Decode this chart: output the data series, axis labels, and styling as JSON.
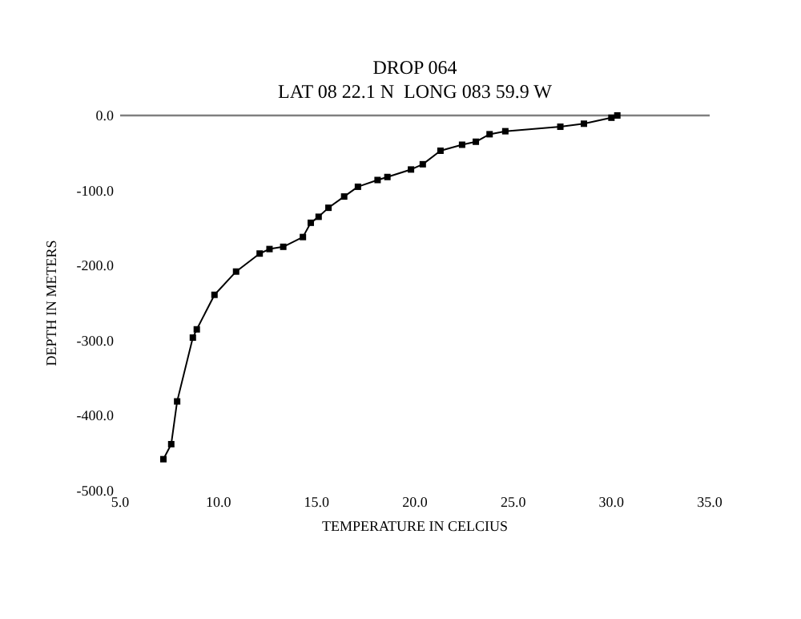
{
  "chart_data": {
    "type": "line",
    "title": "DROP 064",
    "subtitle": "LAT 08 22.1 N  LONG 083 59.9 W",
    "xlabel": "TEMPERATURE IN CELCIUS",
    "ylabel": "DEPTH IN METERS",
    "x": [
      7.2,
      7.6,
      7.9,
      8.7,
      8.9,
      9.8,
      10.9,
      12.1,
      12.6,
      13.3,
      14.3,
      14.7,
      15.1,
      15.6,
      16.4,
      17.1,
      18.1,
      18.6,
      19.8,
      20.4,
      21.3,
      22.4,
      23.1,
      23.8,
      24.6,
      27.4,
      28.6,
      30.0,
      30.3
    ],
    "values": [
      -458,
      -438,
      -381,
      -296,
      -285,
      -239,
      -208,
      -184,
      -178,
      -175,
      -162,
      -143,
      -135,
      -123,
      -108,
      -95,
      -86,
      -82,
      -72,
      -65,
      -47,
      -39,
      -35,
      -25,
      -21,
      -15,
      -11,
      -3,
      0
    ],
    "color": "#000000",
    "marker": "square",
    "grid": false,
    "xlim": [
      5,
      35
    ],
    "xticks": [
      {
        "value": 5,
        "label": "5.0"
      },
      {
        "value": 10,
        "label": "10.0"
      },
      {
        "value": 15,
        "label": "15.0"
      },
      {
        "value": 20,
        "label": "20.0"
      },
      {
        "value": 25,
        "label": "25.0"
      },
      {
        "value": 30,
        "label": "30.0"
      },
      {
        "value": 35,
        "label": "35.0"
      }
    ],
    "ylim": [
      -500,
      0
    ],
    "yticks": [
      {
        "value": -500,
        "label": "-500.0"
      },
      {
        "value": -400,
        "label": "-400.0"
      },
      {
        "value": -300,
        "label": "-300.0"
      },
      {
        "value": -200,
        "label": "-200.0"
      },
      {
        "value": -100,
        "label": "-100.0"
      },
      {
        "value": 0,
        "label": "0.0"
      }
    ]
  }
}
